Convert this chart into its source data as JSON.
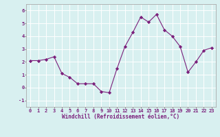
{
  "x": [
    0,
    1,
    2,
    3,
    4,
    5,
    6,
    7,
    8,
    9,
    10,
    11,
    12,
    13,
    14,
    15,
    16,
    17,
    18,
    19,
    20,
    21,
    22,
    23
  ],
  "y": [
    2.1,
    2.1,
    2.2,
    2.4,
    1.1,
    0.8,
    0.3,
    0.3,
    0.3,
    -0.3,
    -0.4,
    1.5,
    3.2,
    4.3,
    5.5,
    5.1,
    5.7,
    4.5,
    4.0,
    3.2,
    1.2,
    2.0,
    2.9,
    3.1
  ],
  "line_color": "#7B1F7B",
  "marker": "D",
  "marker_size": 2.2,
  "bg_color": "#d8f0f0",
  "grid_color": "#ffffff",
  "xlabel": "Windchill (Refroidissement éolien,°C)",
  "xlabel_fontsize": 5.5,
  "ylabel_ticks": [
    -1,
    0,
    1,
    2,
    3,
    4,
    5,
    6
  ],
  "xlim": [
    -0.5,
    23.5
  ],
  "ylim": [
    -1.5,
    6.5
  ],
  "tick_fontsize": 5.0,
  "label_color": "#7B1F7B"
}
